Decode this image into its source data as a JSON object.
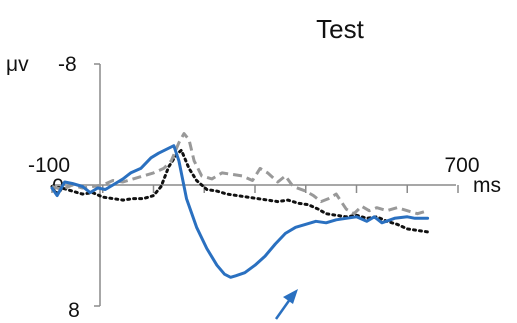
{
  "chart_data": {
    "type": "line",
    "title": "Test",
    "xlabel": "ms",
    "ylabel": "μv",
    "x_tick_labels": [
      "-100",
      "0",
      "700"
    ],
    "y_tick_labels": [
      "-8",
      "0",
      "8"
    ],
    "ylim": [
      -8,
      8
    ],
    "xlim": [
      -100,
      700
    ],
    "y_inverted": true,
    "grid": false,
    "annotations": [
      "arrow"
    ],
    "series": [
      {
        "style": "solid",
        "color": "#2a70c0",
        "points": [
          [
            -100,
            0.2
          ],
          [
            -90,
            0.7
          ],
          [
            -75,
            -0.2
          ],
          [
            -60,
            -0.1
          ],
          [
            -40,
            0.1
          ],
          [
            -25,
            0.5
          ],
          [
            -10,
            0.2
          ],
          [
            5,
            0.3
          ],
          [
            20,
            0.0
          ],
          [
            40,
            -0.4
          ],
          [
            55,
            -0.8
          ],
          [
            75,
            -1.1
          ],
          [
            95,
            -1.8
          ],
          [
            110,
            -2.1
          ],
          [
            128,
            -2.4
          ],
          [
            140,
            -2.6
          ],
          [
            150,
            -1.6
          ],
          [
            165,
            0.9
          ],
          [
            185,
            2.8
          ],
          [
            205,
            4.2
          ],
          [
            225,
            5.3
          ],
          [
            240,
            5.9
          ],
          [
            252,
            6.1
          ],
          [
            262,
            6.0
          ],
          [
            280,
            5.8
          ],
          [
            300,
            5.3
          ],
          [
            320,
            4.7
          ],
          [
            340,
            3.9
          ],
          [
            360,
            3.2
          ],
          [
            380,
            2.8
          ],
          [
            400,
            2.6
          ],
          [
            420,
            2.4
          ],
          [
            440,
            2.5
          ],
          [
            460,
            2.3
          ],
          [
            480,
            2.2
          ],
          [
            500,
            2.1
          ],
          [
            520,
            2.4
          ],
          [
            535,
            2.1
          ],
          [
            550,
            2.5
          ],
          [
            575,
            2.2
          ],
          [
            600,
            2.1
          ],
          [
            615,
            2.2
          ],
          [
            640,
            2.2
          ]
        ]
      },
      {
        "style": "dashed",
        "color": "#999999",
        "points": [
          [
            -100,
            0.1
          ],
          [
            -80,
            0.3
          ],
          [
            -60,
            0.0
          ],
          [
            -40,
            0.2
          ],
          [
            -20,
            0.1
          ],
          [
            0,
            0.0
          ],
          [
            20,
            -0.3
          ],
          [
            40,
            -0.2
          ],
          [
            60,
            -0.4
          ],
          [
            80,
            -0.6
          ],
          [
            100,
            -0.8
          ],
          [
            120,
            -1.1
          ],
          [
            135,
            -1.6
          ],
          [
            150,
            -2.8
          ],
          [
            160,
            -3.4
          ],
          [
            170,
            -3.0
          ],
          [
            180,
            -1.6
          ],
          [
            195,
            -0.6
          ],
          [
            215,
            -0.4
          ],
          [
            235,
            -0.8
          ],
          [
            255,
            -0.7
          ],
          [
            275,
            -0.6
          ],
          [
            295,
            -0.3
          ],
          [
            310,
            -1.1
          ],
          [
            325,
            -0.8
          ],
          [
            345,
            -0.2
          ],
          [
            360,
            -0.6
          ],
          [
            375,
            0.1
          ],
          [
            400,
            0.4
          ],
          [
            415,
            0.7
          ],
          [
            430,
            1.1
          ],
          [
            445,
            0.9
          ],
          [
            460,
            0.6
          ],
          [
            480,
            1.6
          ],
          [
            495,
            1.9
          ],
          [
            510,
            1.4
          ],
          [
            525,
            1.7
          ],
          [
            540,
            1.5
          ],
          [
            560,
            1.7
          ],
          [
            580,
            1.5
          ],
          [
            600,
            1.7
          ],
          [
            620,
            1.9
          ],
          [
            640,
            1.7
          ]
        ]
      },
      {
        "style": "dotted",
        "color": "#111111",
        "points": [
          [
            -100,
            0.1
          ],
          [
            -80,
            0.2
          ],
          [
            -60,
            0.4
          ],
          [
            -40,
            0.6
          ],
          [
            -20,
            0.5
          ],
          [
            0,
            0.8
          ],
          [
            20,
            0.9
          ],
          [
            40,
            1.0
          ],
          [
            60,
            0.9
          ],
          [
            80,
            0.9
          ],
          [
            100,
            0.7
          ],
          [
            115,
            0.1
          ],
          [
            130,
            -1.2
          ],
          [
            145,
            -2.0
          ],
          [
            155,
            -2.3
          ],
          [
            170,
            -1.1
          ],
          [
            185,
            -0.3
          ],
          [
            205,
            0.3
          ],
          [
            225,
            0.4
          ],
          [
            245,
            0.6
          ],
          [
            265,
            0.7
          ],
          [
            285,
            0.8
          ],
          [
            305,
            0.9
          ],
          [
            325,
            1.0
          ],
          [
            345,
            1.1
          ],
          [
            365,
            1.0
          ],
          [
            385,
            1.2
          ],
          [
            405,
            1.3
          ],
          [
            425,
            1.6
          ],
          [
            440,
            1.9
          ],
          [
            460,
            2.0
          ],
          [
            480,
            2.1
          ],
          [
            500,
            2.0
          ],
          [
            520,
            2.2
          ],
          [
            540,
            2.1
          ],
          [
            560,
            2.4
          ],
          [
            580,
            2.6
          ],
          [
            600,
            2.9
          ],
          [
            620,
            3.0
          ],
          [
            640,
            3.1
          ]
        ]
      }
    ]
  }
}
